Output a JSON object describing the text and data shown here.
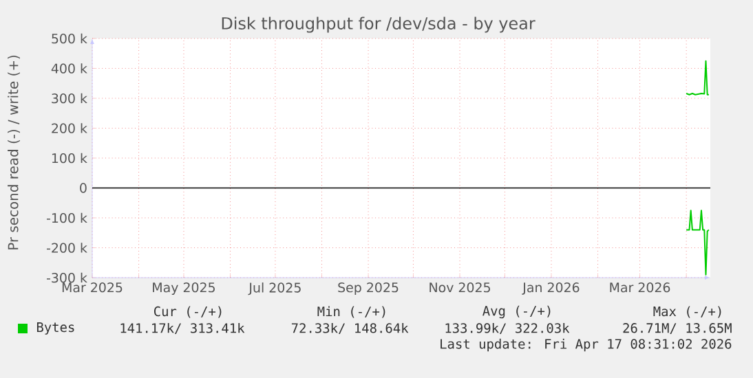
{
  "chart_data": {
    "type": "line",
    "title": "Disk throughput for /dev/sda - by year",
    "ylabel": "Pr second read (-) / write (+)",
    "xlim": [
      "2025-03-01",
      "2026-04-17"
    ],
    "xticks": [
      {
        "value": "2025-03-01",
        "label": "Mar 2025"
      },
      {
        "value": "2025-04-01",
        "label": null
      },
      {
        "value": "2025-05-01",
        "label": "May 2025"
      },
      {
        "value": "2025-06-01",
        "label": null
      },
      {
        "value": "2025-07-01",
        "label": "Jul 2025"
      },
      {
        "value": "2025-08-01",
        "label": null
      },
      {
        "value": "2025-09-01",
        "label": "Sep 2025"
      },
      {
        "value": "2025-10-01",
        "label": null
      },
      {
        "value": "2025-11-01",
        "label": "Nov 2025"
      },
      {
        "value": "2025-12-01",
        "label": null
      },
      {
        "value": "2026-01-01",
        "label": "Jan 2026"
      },
      {
        "value": "2026-02-01",
        "label": null
      },
      {
        "value": "2026-03-01",
        "label": "Mar 2026"
      },
      {
        "value": "2026-04-01",
        "label": null
      }
    ],
    "ylim": [
      -300000,
      500000
    ],
    "yticks": [
      {
        "value": -300000,
        "label": "-300 k"
      },
      {
        "value": -200000,
        "label": "-200 k"
      },
      {
        "value": -100000,
        "label": "-100 k"
      },
      {
        "value": 0,
        "label": "0"
      },
      {
        "value": 100000,
        "label": "100 k"
      },
      {
        "value": 200000,
        "label": "200 k"
      },
      {
        "value": 300000,
        "label": "300 k"
      },
      {
        "value": 400000,
        "label": "400 k"
      },
      {
        "value": 500000,
        "label": "500 k"
      }
    ],
    "grid": true,
    "legend": "bottom",
    "ref_lines": [
      {
        "axis": "y",
        "value": 0,
        "color": "#000000"
      }
    ],
    "series": [
      {
        "name": "Bytes",
        "color": "#00cc00",
        "x": [
          "2026-04-01",
          "2026-04-03",
          "2026-04-05",
          "2026-04-07",
          "2026-04-09",
          "2026-04-11",
          "2026-04-13",
          "2026-04-14",
          "2026-04-15",
          "2026-04-16"
        ],
        "values": [
          316000,
          312000,
          316000,
          312000,
          314000,
          316000,
          315000,
          425000,
          312000,
          312000
        ]
      },
      {
        "color": "#00cc00",
        "x": [
          "2026-04-01",
          "2026-04-03",
          "2026-04-04",
          "2026-04-05",
          "2026-04-10",
          "2026-04-11",
          "2026-04-12",
          "2026-04-13",
          "2026-04-14",
          "2026-04-15",
          "2026-04-16"
        ],
        "values": [
          -140000,
          -140000,
          -75000,
          -140000,
          -140000,
          -75000,
          -140000,
          -140000,
          -290000,
          -145000,
          -140000
        ]
      }
    ],
    "annotations": [
      "Cur (-/+)",
      "Min (-/+)",
      "Avg (-/+)",
      "Max (-/+)",
      "141.17k/ 313.41k",
      "72.33k/ 148.64k",
      "133.99k/ 322.03k",
      "26.71M/  13.65M",
      "Last update: Fri Apr 17 08:31:02 2026"
    ]
  }
}
